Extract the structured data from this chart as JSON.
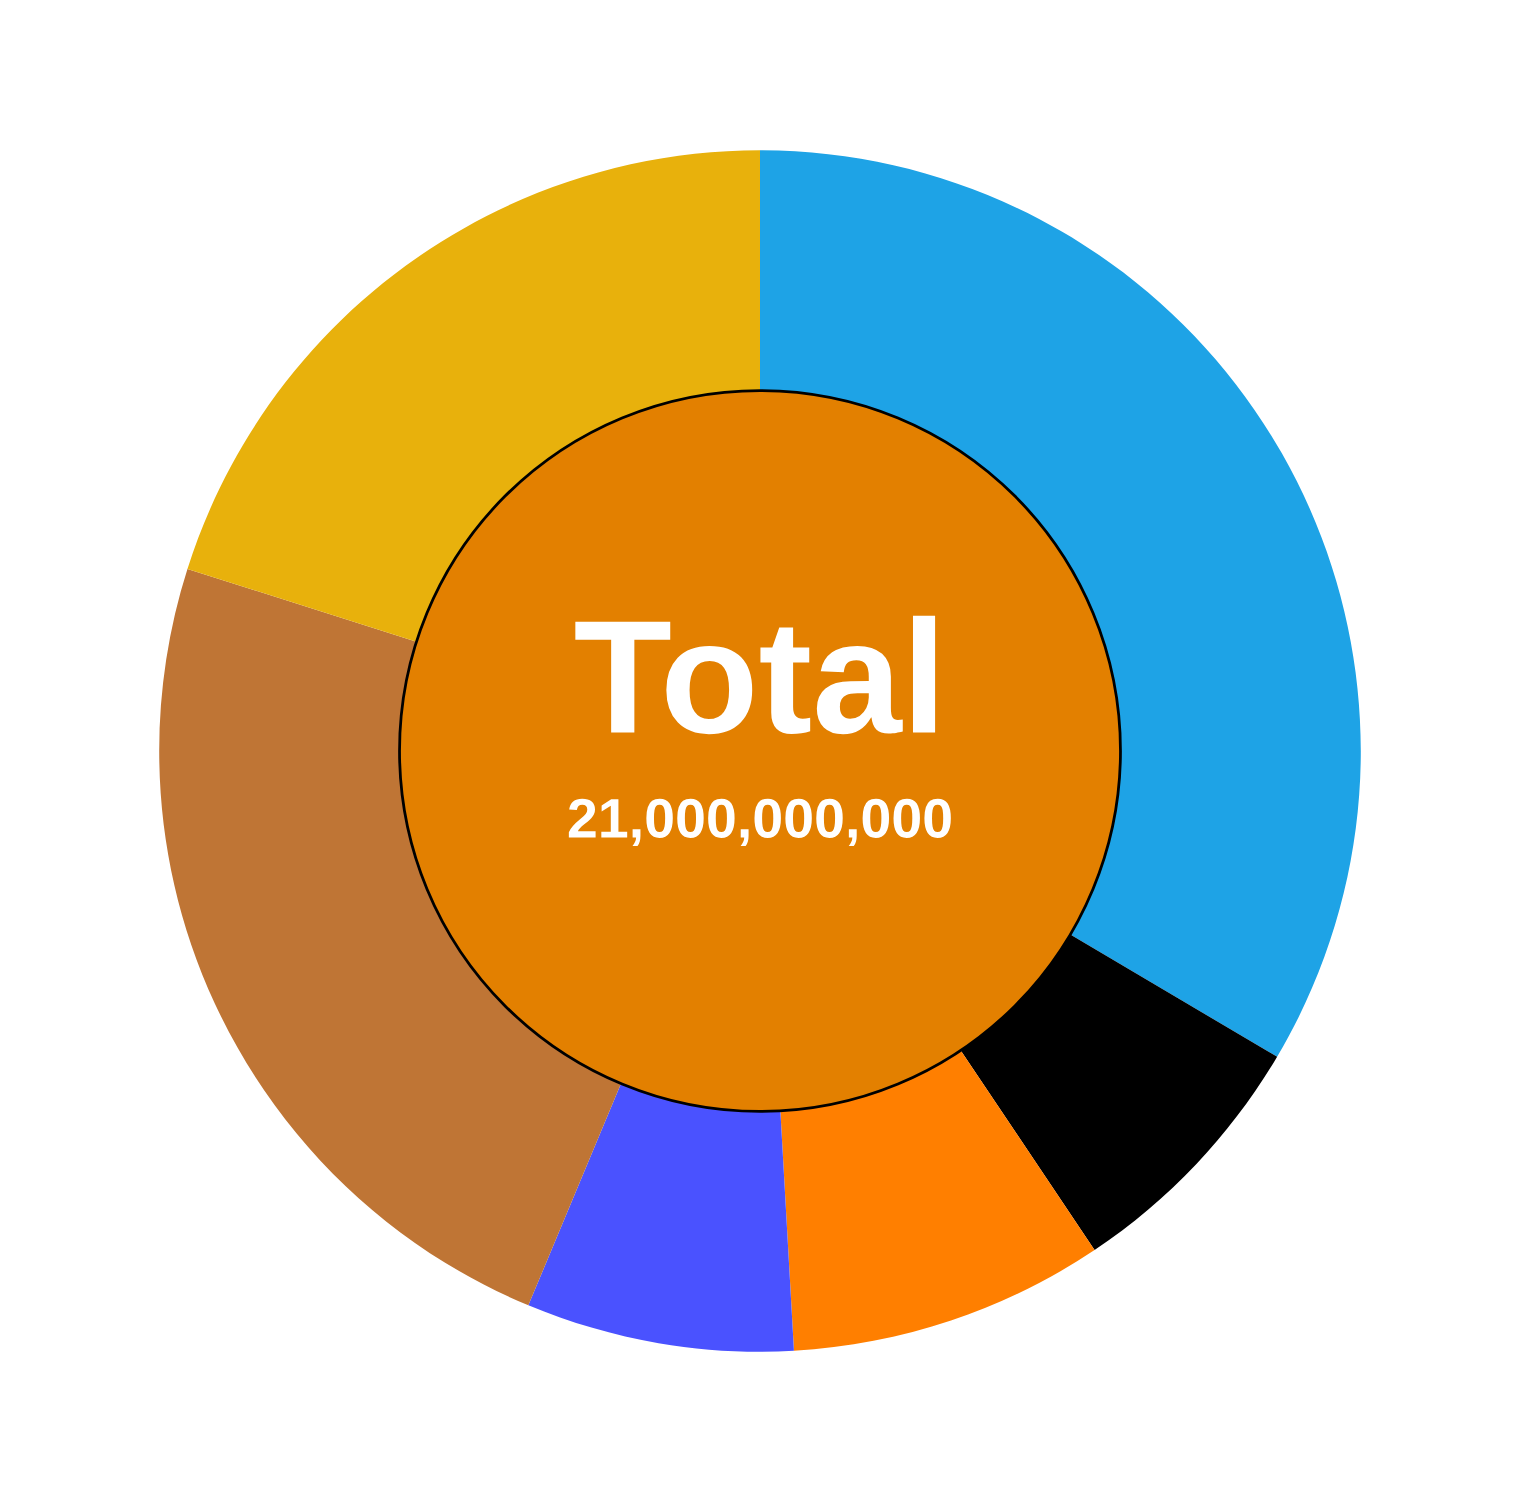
{
  "chart_data": {
    "type": "donut",
    "title": "Total",
    "subtitle": "21,000,000,000",
    "categories": [
      null,
      null,
      null,
      null,
      null,
      null
    ],
    "values": [
      33.5,
      7.1,
      8.5,
      7.2,
      23.6,
      20.1
    ],
    "colors": [
      "#1ea3e6",
      "#000000",
      "#ff7f00",
      "#4a52ff",
      "#bf7535",
      "#e8b10c"
    ]
  }
}
